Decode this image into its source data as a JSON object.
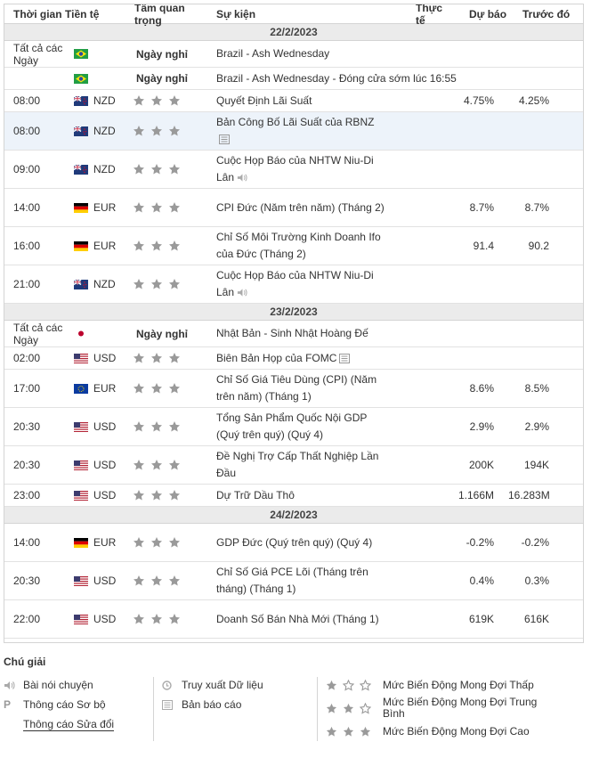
{
  "header": {
    "time": "Thời gian",
    "currency": "Tiền tệ",
    "importance": "Tầm quan trọng",
    "event": "Sự kiện",
    "actual": "Thực tế",
    "forecast": "Dự báo",
    "previous": "Trước đó"
  },
  "days": [
    {
      "date": "22/2/2023",
      "rows": [
        {
          "time": "Tất cả các Ngày",
          "flag": "br",
          "cur": "",
          "holiday": "Ngày nghỉ",
          "stars": 0,
          "event": "Brazil - Ash Wednesday",
          "icon": "",
          "actual": "",
          "forecast": "",
          "previous": "",
          "h": 30
        },
        {
          "time": "",
          "flag": "br",
          "cur": "",
          "holiday": "Ngày nghỉ",
          "stars": 0,
          "event": "Brazil - Ash Wednesday - Đóng cửa sớm lúc 16:55",
          "icon": "",
          "actual": "",
          "forecast": "",
          "previous": "",
          "h": 25,
          "wide": true
        },
        {
          "time": "08:00",
          "flag": "nz",
          "cur": "NZD",
          "holiday": "",
          "stars": 3,
          "event": "Quyết Định Lãi Suất",
          "icon": "",
          "actual": "",
          "forecast": "4.75%",
          "previous": "4.25%",
          "h": 25
        },
        {
          "time": "08:00",
          "flag": "nz",
          "cur": "NZD",
          "holiday": "",
          "stars": 3,
          "event": "Bản Công Bố Lãi Suất của RBNZ",
          "icon": "doc-icon",
          "actual": "",
          "forecast": "",
          "previous": "",
          "h": 43,
          "hl": true
        },
        {
          "time": "09:00",
          "flag": "nz",
          "cur": "NZD",
          "holiday": "",
          "stars": 3,
          "event": "Cuộc Họp Báo của NHTW Niu-Di Lân",
          "icon": "speaker-icon",
          "actual": "",
          "forecast": "",
          "previous": "",
          "h": 43
        },
        {
          "time": "14:00",
          "flag": "de",
          "cur": "EUR",
          "holiday": "",
          "stars": 3,
          "event": "CPI Đức (Năm trên năm) (Tháng 2)",
          "icon": "",
          "actual": "",
          "forecast": "8.7%",
          "previous": "8.7%",
          "h": 43
        },
        {
          "time": "16:00",
          "flag": "de",
          "cur": "EUR",
          "holiday": "",
          "stars": 3,
          "event": "Chỉ Số Môi Trường Kinh Doanh Ifo của Đức (Tháng 2)",
          "icon": "",
          "actual": "",
          "forecast": "91.4",
          "previous": "90.2",
          "h": 43
        },
        {
          "time": "21:00",
          "flag": "nz",
          "cur": "NZD",
          "holiday": "",
          "stars": 3,
          "event": "Cuộc Họp Báo của NHTW Niu-Di Lân",
          "icon": "speaker-icon",
          "actual": "",
          "forecast": "",
          "previous": "",
          "h": 43
        }
      ]
    },
    {
      "date": "23/2/2023",
      "rows": [
        {
          "time": "Tất cả các Ngày",
          "flag": "jp",
          "cur": "",
          "holiday": "Ngày nghỉ",
          "stars": 0,
          "event": "Nhật Bản - Sinh Nhật Hoàng Đế",
          "icon": "",
          "actual": "",
          "forecast": "",
          "previous": "",
          "h": 30
        },
        {
          "time": "02:00",
          "flag": "us",
          "cur": "USD",
          "holiday": "",
          "stars": 3,
          "event": "Biên Bản Họp của FOMC",
          "icon": "doc-icon",
          "actual": "",
          "forecast": "",
          "previous": "",
          "h": 25
        },
        {
          "time": "17:00",
          "flag": "eu",
          "cur": "EUR",
          "holiday": "",
          "stars": 3,
          "event": "Chỉ Số Giá Tiêu Dùng (CPI) (Năm trên năm) (Tháng 1)",
          "icon": "",
          "actual": "",
          "forecast": "8.6%",
          "previous": "8.5%",
          "h": 43
        },
        {
          "time": "20:30",
          "flag": "us",
          "cur": "USD",
          "holiday": "",
          "stars": 3,
          "event": "Tổng Sản Phẩm Quốc Nội GDP (Quý trên quý) (Quý 4)",
          "icon": "",
          "actual": "",
          "forecast": "2.9%",
          "previous": "2.9%",
          "h": 43
        },
        {
          "time": "20:30",
          "flag": "us",
          "cur": "USD",
          "holiday": "",
          "stars": 3,
          "event": "Đề Nghị Trợ Cấp Thất Nghiệp Lần Đầu",
          "icon": "",
          "actual": "",
          "forecast": "200K",
          "previous": "194K",
          "h": 43
        },
        {
          "time": "23:00",
          "flag": "us",
          "cur": "USD",
          "holiday": "",
          "stars": 3,
          "event": "Dự Trữ Dầu Thô",
          "icon": "",
          "actual": "",
          "forecast": "1.166M",
          "previous": "16.283M",
          "h": 25
        }
      ]
    },
    {
      "date": "24/2/2023",
      "rows": [
        {
          "time": "14:00",
          "flag": "de",
          "cur": "EUR",
          "holiday": "",
          "stars": 3,
          "event": "GDP Đức (Quý trên quý) (Quý 4)",
          "icon": "",
          "actual": "",
          "forecast": "-0.2%",
          "previous": "-0.2%",
          "h": 43
        },
        {
          "time": "20:30",
          "flag": "us",
          "cur": "USD",
          "holiday": "",
          "stars": 3,
          "event": "Chỉ Số Giá PCE Lõi (Tháng trên tháng) (Tháng 1)",
          "icon": "",
          "actual": "",
          "forecast": "0.4%",
          "previous": "0.3%",
          "h": 43
        },
        {
          "time": "22:00",
          "flag": "us",
          "cur": "USD",
          "holiday": "",
          "stars": 3,
          "event": "Doanh Số Bán Nhà Mới (Tháng 1)",
          "icon": "",
          "actual": "",
          "forecast": "619K",
          "previous": "616K",
          "h": 43
        }
      ]
    }
  ],
  "legend": {
    "title": "Chú giải",
    "speech": "Bài nói chuyện",
    "preliminary": "Thông cáo Sơ bộ",
    "preliminary_glyph": "P",
    "revised": "Thông cáo Sửa đổi",
    "retrieve": "Truy xuất Dữ liệu",
    "report": "Bản báo cáo",
    "low": "Mức Biến Động Mong Đợi Thấp",
    "medium": "Mức Biến Động Mong Đợi Trung Bình",
    "high": "Mức Biến Động Mong Đợi Cao"
  },
  "colors": {
    "date_row_bg": "#ebebeb",
    "highlight_row_bg": "#edf3fa",
    "star": "#9a9a9a",
    "border": "#d4d4d4"
  }
}
